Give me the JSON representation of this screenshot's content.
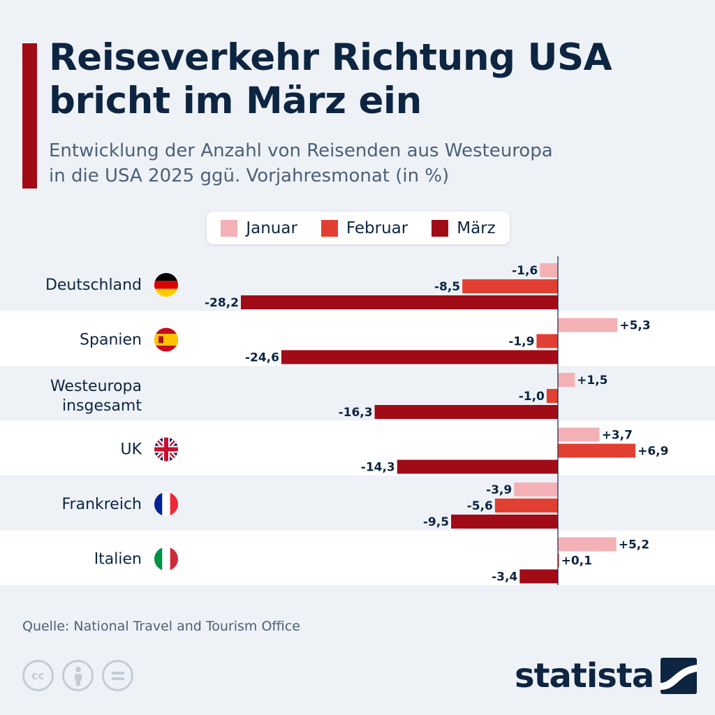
{
  "header": {
    "title_line1": "Reiseverkehr Richtung USA",
    "title_line2": "bricht im März ein",
    "subtitle_line1": "Entwicklung der Anzahl von Reisenden aus Westeuropa",
    "subtitle_line2": "in die USA 2025 ggü. Vorjahresmonat (in %)"
  },
  "colors": {
    "accent": "#a10b16",
    "navy": "#0d2541",
    "januar": "#f3b1b6",
    "februar": "#e23f33",
    "maerz": "#a10b16"
  },
  "chart_data": {
    "type": "bar",
    "orientation": "horizontal",
    "categories": [
      "Deutschland",
      "Spanien",
      "Westeuropa insgesamt",
      "UK",
      "Frankreich",
      "Italien"
    ],
    "category_icons": [
      "germany-flag-icon",
      "spain-flag-icon",
      "",
      "uk-flag-icon",
      "france-flag-icon",
      "italy-flag-icon"
    ],
    "series": [
      {
        "name": "Januar",
        "values": [
          -1.6,
          5.3,
          1.5,
          3.7,
          -3.9,
          5.2
        ],
        "labels": [
          "-1,6",
          "+5,3",
          "+1,5",
          "+3,7",
          "-3,9",
          "+5,2"
        ]
      },
      {
        "name": "Februar",
        "values": [
          -8.5,
          -1.9,
          -1.0,
          6.9,
          -5.6,
          0.1
        ],
        "labels": [
          "-8,5",
          "-1,9",
          "-1,0",
          "+6,9",
          "-5,6",
          "+0,1"
        ]
      },
      {
        "name": "März",
        "values": [
          -28.2,
          -24.6,
          -16.3,
          -14.3,
          -9.5,
          -3.4
        ],
        "labels": [
          "-28,2",
          "-24,6",
          "-16,3",
          "-14,3",
          "-9,5",
          "-3,4"
        ]
      }
    ],
    "legend_position": "top-center",
    "grid": false
  },
  "footer": {
    "source": "Quelle: National Travel and Tourism Office",
    "brand": "statista",
    "license_icons": [
      "cc-icon",
      "attribution-icon",
      "no-derivatives-icon"
    ]
  }
}
